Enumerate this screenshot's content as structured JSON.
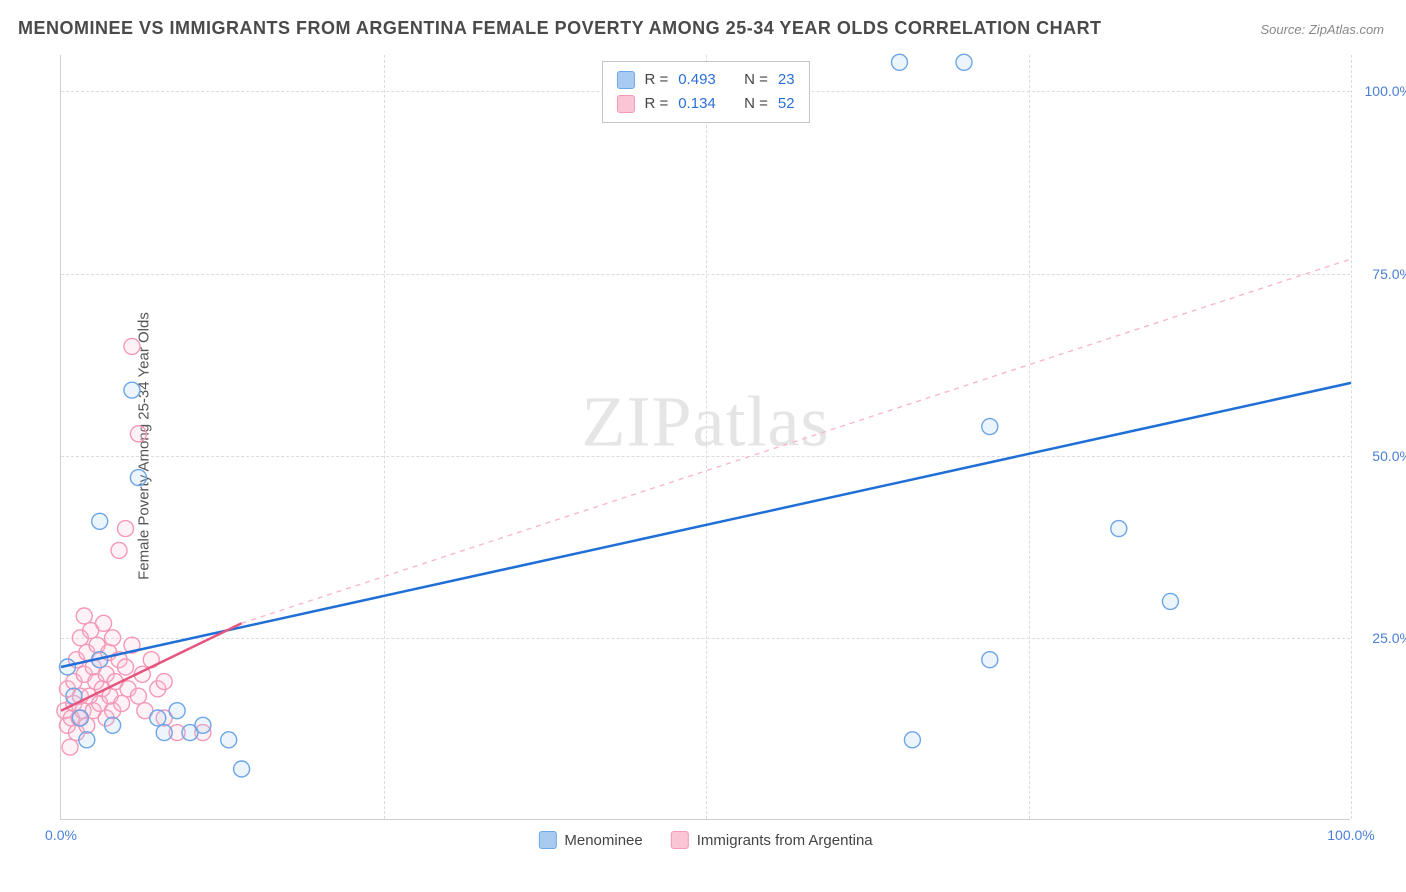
{
  "title": "MENOMINEE VS IMMIGRANTS FROM ARGENTINA FEMALE POVERTY AMONG 25-34 YEAR OLDS CORRELATION CHART",
  "source_label": "Source: ZipAtlas.com",
  "y_axis_label": "Female Poverty Among 25-34 Year Olds",
  "watermark_a": "ZIP",
  "watermark_b": "atlas",
  "chart": {
    "type": "scatter",
    "xlim": [
      0,
      100
    ],
    "ylim": [
      0,
      105
    ],
    "x_ticks": [
      0,
      25,
      50,
      75,
      100
    ],
    "y_ticks": [
      25,
      50,
      75,
      100
    ],
    "x_tick_labels": [
      "0.0%",
      "",
      "",
      "",
      "100.0%"
    ],
    "y_tick_labels": [
      "25.0%",
      "50.0%",
      "75.0%",
      "100.0%"
    ],
    "grid_color": "#dcdcdc",
    "background_color": "#ffffff",
    "marker_radius": 8,
    "marker_stroke_width": 1.4,
    "marker_fill_opacity": 0.22
  },
  "series": {
    "blue": {
      "label": "Menominee",
      "color_stroke": "#6da6e8",
      "color_fill": "#a9cbf2",
      "R": "0.493",
      "N": "23",
      "trend": {
        "x1": 0,
        "y1": 21,
        "x2": 100,
        "y2": 60,
        "color": "#1f6fd6",
        "width": 2.5,
        "dash": "none"
      },
      "points": [
        [
          0.5,
          21
        ],
        [
          1,
          17
        ],
        [
          1.5,
          14
        ],
        [
          2,
          11
        ],
        [
          3,
          22
        ],
        [
          3,
          41
        ],
        [
          4,
          13
        ],
        [
          5.5,
          59
        ],
        [
          6,
          47
        ],
        [
          7.5,
          14
        ],
        [
          8,
          12
        ],
        [
          9,
          15
        ],
        [
          10,
          12
        ],
        [
          11,
          13
        ],
        [
          13,
          11
        ],
        [
          14,
          7
        ],
        [
          65,
          104
        ],
        [
          66,
          11
        ],
        [
          70,
          104
        ],
        [
          72,
          22
        ],
        [
          72,
          54
        ],
        [
          82,
          40
        ],
        [
          86,
          30
        ]
      ]
    },
    "pink": {
      "label": "Immigrants from Argentina",
      "color_stroke": "#f598b8",
      "color_fill": "#fac6d6",
      "R": "0.134",
      "N": "52",
      "trend_solid": {
        "x1": 0,
        "y1": 15,
        "x2": 14,
        "y2": 27,
        "color": "#e5557f",
        "width": 2.5
      },
      "trend_dash": {
        "x1": 14,
        "y1": 27,
        "x2": 100,
        "y2": 77,
        "color": "#f7b8cc",
        "width": 1.4,
        "dash": "5,5"
      },
      "points": [
        [
          0.3,
          15
        ],
        [
          0.5,
          13
        ],
        [
          0.5,
          18
        ],
        [
          0.7,
          10
        ],
        [
          0.8,
          14
        ],
        [
          1,
          16
        ],
        [
          1,
          19
        ],
        [
          1.2,
          12
        ],
        [
          1.2,
          22
        ],
        [
          1.4,
          14
        ],
        [
          1.5,
          17
        ],
        [
          1.5,
          25
        ],
        [
          1.7,
          15
        ],
        [
          1.8,
          20
        ],
        [
          1.8,
          28
        ],
        [
          2,
          13
        ],
        [
          2,
          23
        ],
        [
          2.2,
          17
        ],
        [
          2.3,
          26
        ],
        [
          2.5,
          15
        ],
        [
          2.5,
          21
        ],
        [
          2.7,
          19
        ],
        [
          2.8,
          24
        ],
        [
          3,
          16
        ],
        [
          3,
          22
        ],
        [
          3.2,
          18
        ],
        [
          3.3,
          27
        ],
        [
          3.5,
          14
        ],
        [
          3.5,
          20
        ],
        [
          3.7,
          23
        ],
        [
          3.8,
          17
        ],
        [
          4,
          25
        ],
        [
          4,
          15
        ],
        [
          4.2,
          19
        ],
        [
          4.5,
          22
        ],
        [
          4.5,
          37
        ],
        [
          4.7,
          16
        ],
        [
          5,
          21
        ],
        [
          5,
          40
        ],
        [
          5.2,
          18
        ],
        [
          5.5,
          24
        ],
        [
          5.5,
          65
        ],
        [
          6,
          53
        ],
        [
          6,
          17
        ],
        [
          6.3,
          20
        ],
        [
          6.5,
          15
        ],
        [
          7,
          22
        ],
        [
          7.5,
          18
        ],
        [
          8,
          14
        ],
        [
          8,
          19
        ],
        [
          9,
          12
        ],
        [
          11,
          12
        ]
      ]
    }
  },
  "stats_box": {
    "r_label": "R =",
    "n_label": "N ="
  },
  "colors": {
    "title": "#4a4a4a",
    "axis_text_blue": "#4a7fd6",
    "stat_value": "#2d6fd6"
  }
}
